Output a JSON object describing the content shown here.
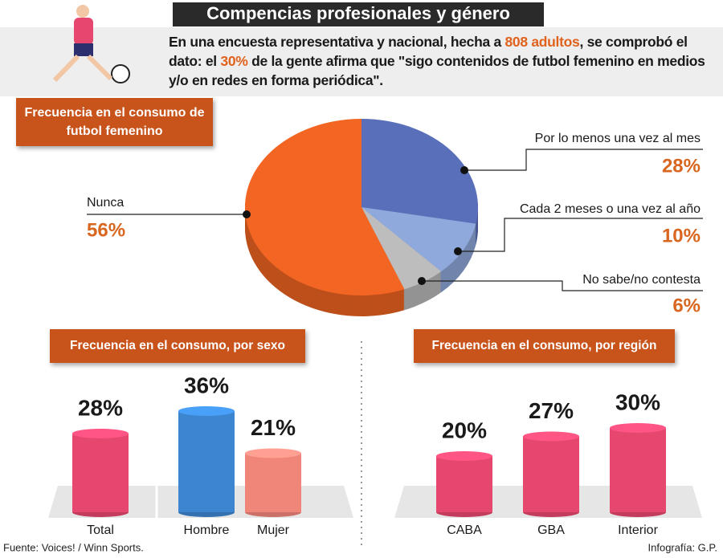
{
  "title": "Compencias profesionales y género",
  "intro": [
    "En una encuesta representativa y nacional, hecha a ",
    "808 adultos",
    ", se comprobó el dato: el ",
    "30%",
    " de la gente afirma que \"sigo contenidos de futbol femenino en medios y/o en redes en forma periódica\"."
  ],
  "chart_data": [
    {
      "type": "pie",
      "title": "Frecuencia en el consumo de futbol femenino",
      "categories": [
        "Por lo menos una vez al mes",
        "Cada 2 meses o una vez al año",
        "No sabe/no contesta",
        "Nunca"
      ],
      "values": [
        28,
        10,
        6,
        56
      ],
      "value_labels": [
        "28%",
        "10%",
        "6%",
        "56%"
      ],
      "colors": [
        "#5a6fb9",
        "#8fa9dd",
        "#bdbdbd",
        "#f26522"
      ]
    },
    {
      "type": "bar",
      "title": "Frecuencia en el consumo, por sexo",
      "categories": [
        "Total",
        "Hombre",
        "Mujer"
      ],
      "values": [
        28,
        36,
        21
      ],
      "value_labels": [
        "28%",
        "36%",
        "21%"
      ],
      "colors": [
        "#e5476f",
        "#3d85cf",
        "#f0857a"
      ]
    },
    {
      "type": "bar",
      "title": "Frecuencia en el consumo, por región",
      "categories": [
        "CABA",
        "GBA",
        "Interior"
      ],
      "values": [
        20,
        27,
        30
      ],
      "value_labels": [
        "20%",
        "27%",
        "30%"
      ],
      "colors": [
        "#e5476f",
        "#e5476f",
        "#e5476f"
      ]
    }
  ],
  "source": "Fuente: Voices! / Winn Sports.",
  "credit": "Infografía: G.P."
}
